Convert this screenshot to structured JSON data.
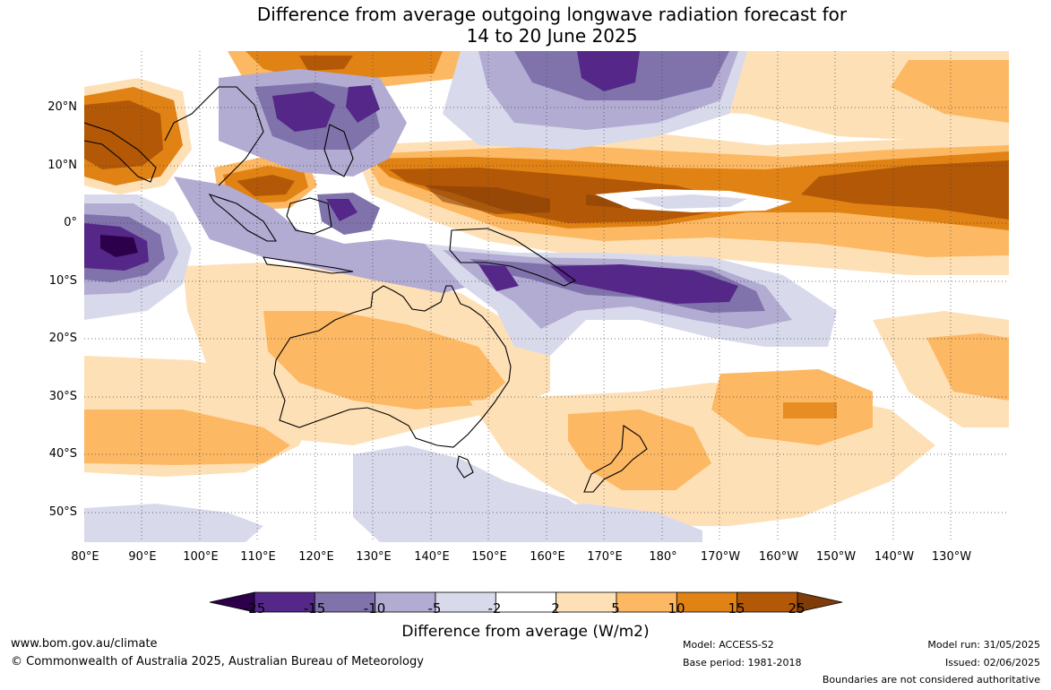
{
  "title": {
    "line1": "Difference from average outgoing longwave radiation forecast for",
    "line2": "14 to 20 June 2025"
  },
  "latitude_labels": [
    "20°N",
    "10°N",
    "0°",
    "10°S",
    "20°S",
    "30°S",
    "40°S",
    "50°S"
  ],
  "longitude_labels": [
    "80°E",
    "90°E",
    "100°E",
    "110°E",
    "120°E",
    "130°E",
    "140°E",
    "150°E",
    "160°E",
    "170°E",
    "180°",
    "170°W",
    "160°W",
    "150°W",
    "140°W",
    "130°W"
  ],
  "colorbar": {
    "ticks": [
      "-25",
      "-15",
      "-10",
      "-5",
      "-2",
      "2",
      "5",
      "10",
      "15",
      "25"
    ],
    "colors": [
      "#2d004b",
      "#542788",
      "#8073ac",
      "#b2abd2",
      "#d8daeb",
      "#ffffff",
      "#fee0b6",
      "#fdb863",
      "#e08214",
      "#b35806",
      "#7f3b08"
    ],
    "title": "Difference from average (W/m2)"
  },
  "footer": {
    "website": "www.bom.gov.au/climate",
    "copyright": "© Commonwealth of Australia 2025, Australian Bureau of Meteorology",
    "model": "Model: ACCESS-S2",
    "base_period": "Base period: 1981-2018",
    "model_run": "Model run: 31/05/2025",
    "issued": "Issued: 02/06/2025",
    "disclaimer": "Boundaries are not considered authoritative"
  }
}
